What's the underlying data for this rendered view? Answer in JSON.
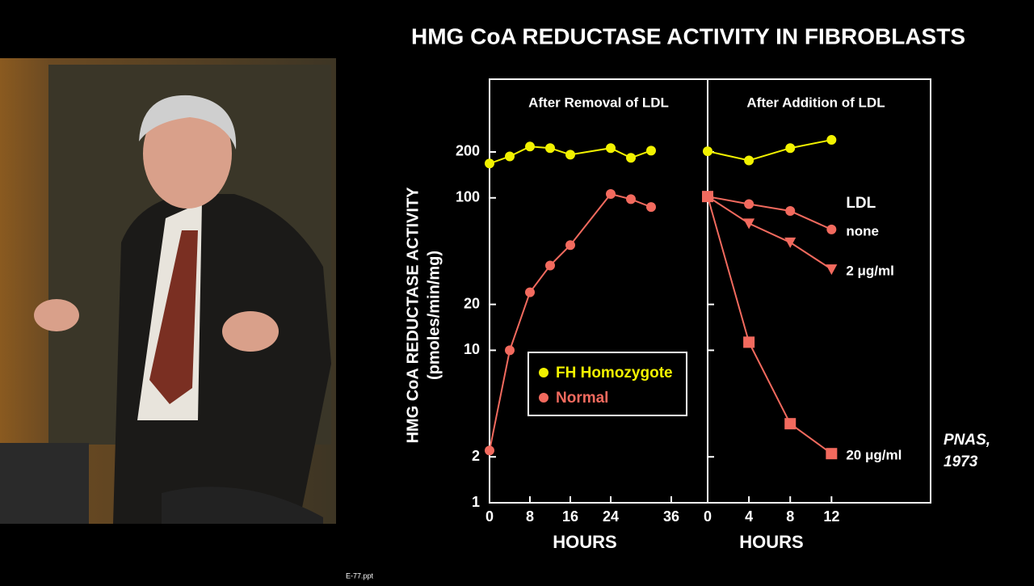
{
  "title": "HMG CoA REDUCTASE ACTIVITY IN FIBROBLASTS",
  "citation": [
    "PNAS,",
    "1973"
  ],
  "footer": "E-77.ppt",
  "chart_data": [
    {
      "type": "line",
      "subtitle": "After Removal of LDL",
      "x_label": "HOURS",
      "y_label": [
        "HMG CoA REDUCTASE ACTIVITY",
        "(pmoles/min/mg)"
      ],
      "log_y": true,
      "ylim": [
        1,
        600
      ],
      "yticks": [
        1,
        2,
        10,
        20,
        100,
        200
      ],
      "xlim": [
        0,
        43.2
      ],
      "xticks": [
        0,
        8,
        16,
        24,
        36
      ],
      "series": [
        {
          "name": "FH Homozygote",
          "color": "#f2f200",
          "marker": "circle",
          "x": [
            0,
            4,
            8,
            12,
            16,
            24,
            28,
            32
          ],
          "values": [
            168,
            187,
            217,
            212,
            192,
            212,
            183,
            204
          ]
        },
        {
          "name": "Normal",
          "color": "#f26a5e",
          "marker": "circle",
          "x": [
            0,
            4,
            8,
            12,
            16,
            24,
            28,
            32
          ],
          "values": [
            2.2,
            10,
            24,
            36,
            49,
            106,
            98,
            87
          ]
        }
      ]
    },
    {
      "type": "line",
      "subtitle": "After Addition of LDL",
      "x_label": "HOURS",
      "legend_title": "LDL",
      "log_y": true,
      "ylim": [
        1,
        600
      ],
      "xlim": [
        0,
        21.6
      ],
      "xticks": [
        0,
        4,
        8,
        12
      ],
      "series": [
        {
          "color": "#f2f200",
          "marker": "circle",
          "x": [
            0,
            4,
            8,
            12
          ],
          "values": [
            202,
            176,
            212,
            240
          ]
        },
        {
          "name": "none",
          "color": "#f26a5e",
          "marker": "circle",
          "x": [
            0,
            4,
            8,
            12
          ],
          "values": [
            102,
            91,
            82,
            62
          ]
        },
        {
          "name": "2 μg/ml",
          "color": "#f26a5e",
          "marker": "triangle",
          "x": [
            0,
            4,
            8,
            12
          ],
          "values": [
            102,
            68,
            51,
            34
          ]
        },
        {
          "name": "20 μg/ml",
          "color": "#f26a5e",
          "marker": "square",
          "x": [
            0,
            4,
            8,
            12
          ],
          "values": [
            102,
            11.3,
            3.3,
            2.1
          ]
        }
      ]
    }
  ]
}
